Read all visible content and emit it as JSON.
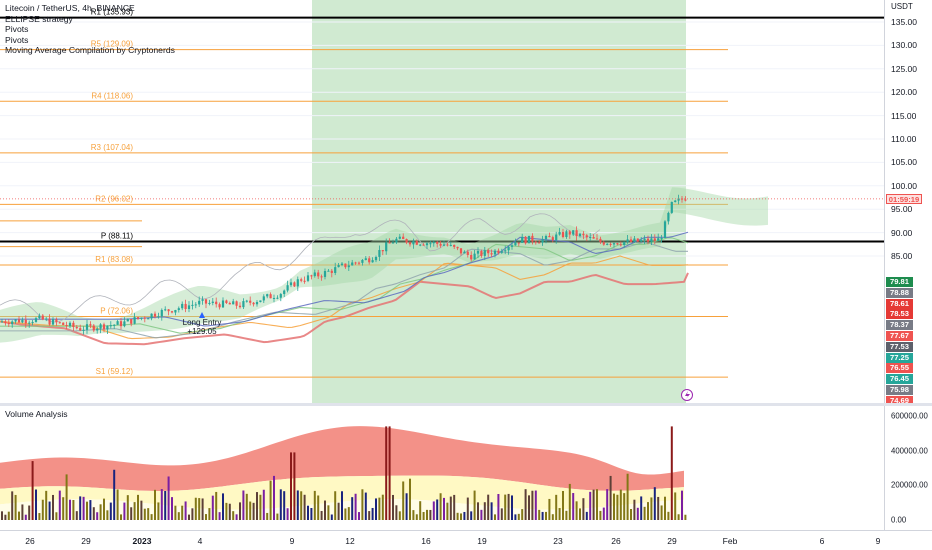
{
  "legend": {
    "symbol": "Litecoin / TetherUS, 4h, BINANCE",
    "indicators": [
      "ELLIPSE strategy",
      "Pivots",
      "Pivots",
      "Moving Average Compilation by Cryptonerds"
    ]
  },
  "price_axis": {
    "currency": "USDT",
    "ticks": [
      "135.00",
      "130.00",
      "125.00",
      "120.00",
      "115.00",
      "110.00",
      "105.00",
      "100.00",
      "95.00",
      "90.00",
      "85.00"
    ],
    "tick_values": [
      135,
      130,
      125,
      120,
      115,
      110,
      105,
      100,
      95,
      90,
      85
    ],
    "countdown": "01:59:19",
    "tags": [
      {
        "text": "79.81",
        "color": "#1e8c4e"
      },
      {
        "text": "78.88",
        "color": "#787b86"
      },
      {
        "text": "78.61",
        "color": "#e53935"
      },
      {
        "text": "78.53",
        "color": "#e53935"
      },
      {
        "text": "78.37",
        "color": "#787b86"
      },
      {
        "text": "77.67",
        "color": "#ef5350"
      },
      {
        "text": "77.53",
        "color": "#5d606b"
      },
      {
        "text": "77.25",
        "color": "#26a69a"
      },
      {
        "text": "76.55",
        "color": "#ef5350"
      },
      {
        "text": "76.45",
        "color": "#26a69a"
      },
      {
        "text": "75.98",
        "color": "#787b86"
      },
      {
        "text": "74.69",
        "color": "#ef5350"
      }
    ]
  },
  "pivot_levels": [
    {
      "label": "R1 (135.93)",
      "value": 135.93,
      "style": "black"
    },
    {
      "label": "R5 (129.09)",
      "value": 129.09,
      "style": "orange"
    },
    {
      "label": "R4 (118.06)",
      "value": 118.06,
      "style": "orange"
    },
    {
      "label": "R3 (107.04)",
      "value": 107.04,
      "style": "orange"
    },
    {
      "label": "R2 (96.02)",
      "value": 96.02,
      "style": "orange"
    },
    {
      "label": "P (88.11)",
      "value": 88.11,
      "style": "black"
    },
    {
      "label": "R1 (83.08)",
      "value": 83.08,
      "style": "orange"
    },
    {
      "label": "P (72.06)",
      "value": 72.06,
      "style": "orange"
    },
    {
      "label": "S1 (59.12)",
      "value": 59.12,
      "style": "orange"
    }
  ],
  "trade": {
    "label": "Long Entry",
    "value": "+129.05"
  },
  "volume": {
    "title": "Volume Analysis",
    "ticks": [
      "600000.00",
      "400000.00",
      "200000.00",
      "0.00"
    ],
    "tick_values": [
      600000,
      400000,
      200000,
      0
    ]
  },
  "time_axis": {
    "labels": [
      "26",
      "29",
      "2023",
      "4",
      "9",
      "12",
      "16",
      "19",
      "23",
      "26",
      "29",
      "Feb",
      "6",
      "9"
    ]
  },
  "colors": {
    "up": "#26a69a",
    "down": "#ef5350",
    "pivot_orange": "#f7a13b",
    "highlight_zone": "#c8e6c9"
  }
}
